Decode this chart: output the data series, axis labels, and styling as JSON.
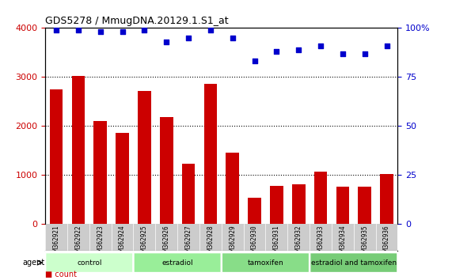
{
  "title": "GDS5278 / MmugDNA.20129.1.S1_at",
  "samples": [
    "GSM362921",
    "GSM362922",
    "GSM362923",
    "GSM362924",
    "GSM362925",
    "GSM362926",
    "GSM362927",
    "GSM362928",
    "GSM362929",
    "GSM362930",
    "GSM362931",
    "GSM362932",
    "GSM362933",
    "GSM362934",
    "GSM362935",
    "GSM362936"
  ],
  "counts": [
    2750,
    3020,
    2100,
    1850,
    2720,
    2180,
    1220,
    2860,
    1450,
    530,
    770,
    800,
    1060,
    760,
    760,
    1010
  ],
  "percentiles": [
    99,
    99,
    98,
    98,
    99,
    93,
    95,
    99,
    95,
    83,
    88,
    89,
    91,
    87,
    87,
    91
  ],
  "bar_color": "#cc0000",
  "dot_color": "#0000cc",
  "groups": [
    {
      "label": "control",
      "start": 0,
      "end": 4,
      "color": "#ccffcc"
    },
    {
      "label": "estradiol",
      "start": 4,
      "end": 8,
      "color": "#99ee99"
    },
    {
      "label": "tamoxifen",
      "start": 8,
      "end": 12,
      "color": "#88dd88"
    },
    {
      "label": "estradiol and tamoxifen",
      "start": 12,
      "end": 16,
      "color": "#77cc77"
    }
  ],
  "ylim_left": [
    0,
    4000
  ],
  "ylim_right": [
    0,
    100
  ],
  "yticks_left": [
    0,
    1000,
    2000,
    3000,
    4000
  ],
  "yticks_right": [
    0,
    25,
    50,
    75,
    100
  ],
  "ytick_labels_right": [
    "0",
    "25",
    "50",
    "75",
    "100%"
  ],
  "xlabel": "",
  "ylabel_left": "",
  "ylabel_right": "",
  "legend_count_color": "#cc0000",
  "legend_dot_color": "#0000cc",
  "bg_plot": "#ffffff",
  "bg_label_row": "#cccccc",
  "agent_label": "agent"
}
